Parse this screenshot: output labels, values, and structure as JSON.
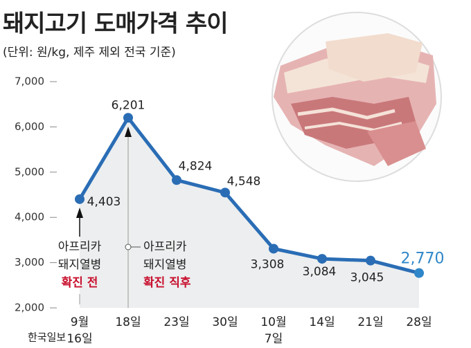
{
  "chart_data": {
    "type": "line",
    "title": "돼지고기 도매가격 추이",
    "subtitle": "(단위: 원/kg, 제주 제외 전국 기준)",
    "categories": [
      "9월\n16일",
      "18일",
      "23일",
      "30일",
      "10월\n7일",
      "14일",
      "21일",
      "28일"
    ],
    "series": [
      {
        "color": "#2a6db5",
        "values": [
          4403,
          6201,
          4824,
          4548,
          3308,
          3084,
          3045,
          2770
        ],
        "value_labels": [
          "4,403",
          "6,201",
          "4,824",
          "4,548",
          "3,308",
          "3,084",
          "3,045",
          "2,770"
        ]
      }
    ],
    "ylim": [
      2000,
      7000
    ],
    "yticks": [
      {
        "value": 2000,
        "label": "2,000"
      },
      {
        "value": 3000,
        "label": "3,000"
      },
      {
        "value": 4000,
        "label": "4,000"
      },
      {
        "value": 5000,
        "label": "5,000"
      },
      {
        "value": 6000,
        "label": "6,000"
      },
      {
        "value": 7000,
        "label": "7,000"
      }
    ],
    "area_fill": "#eceeef",
    "annotations": [
      {
        "lines": [
          "아프리카",
          "돼지열병"
        ],
        "highlight": "확진 전"
      },
      {
        "lines": [
          "아프리카",
          "돼지열병"
        ],
        "highlight": "확진 직후"
      }
    ],
    "highlight_color": "#c8102e"
  },
  "watermark": "한국일보"
}
